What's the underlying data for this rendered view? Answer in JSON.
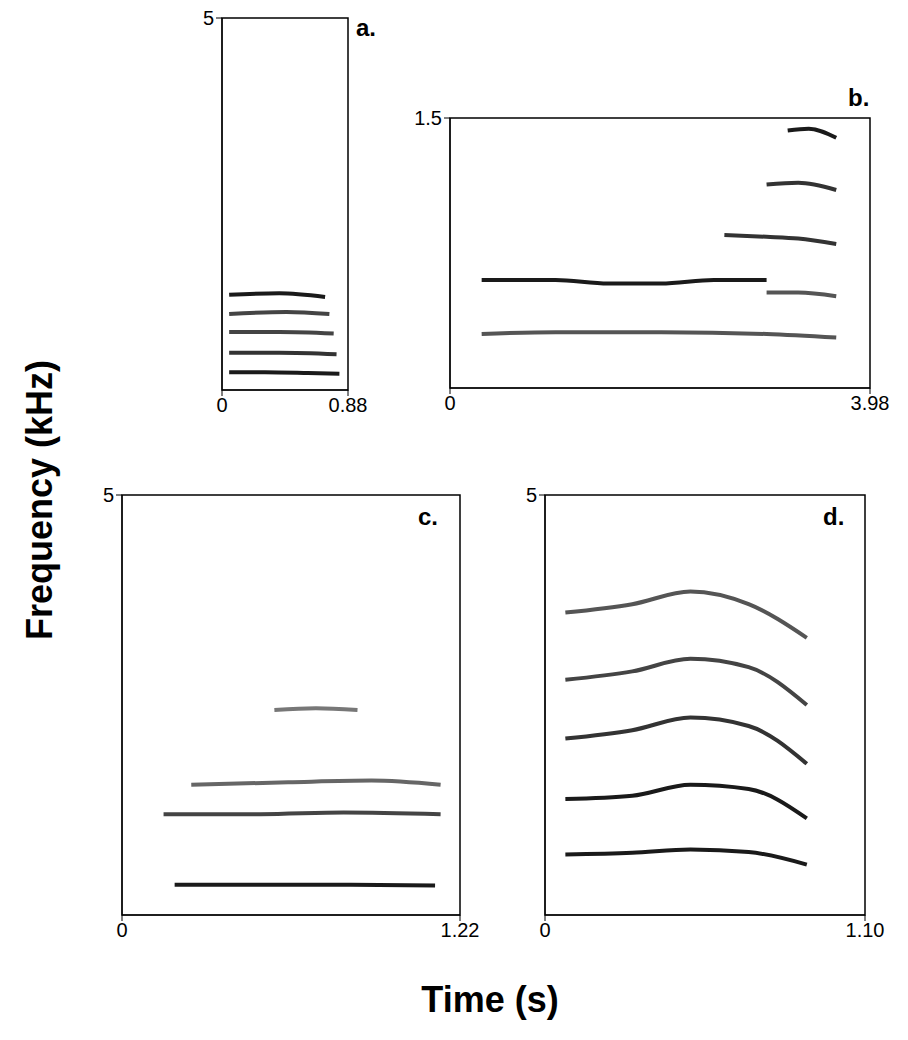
{
  "xlabel": "Time (s)",
  "ylabel": "Frequency (kHz)",
  "chart_data": [
    {
      "type": "line",
      "title": "a.",
      "xlim": [
        0,
        0.88
      ],
      "xticks": [
        0,
        0.88
      ],
      "ylim": [
        0,
        5
      ],
      "yticks": [
        5
      ],
      "grid": false,
      "series": [
        {
          "color": "#1a1a1a",
          "x": [
            0.05,
            0.3,
            0.6,
            0.82
          ],
          "values": [
            0.24,
            0.24,
            0.23,
            0.22
          ]
        },
        {
          "color": "#333333",
          "x": [
            0.05,
            0.4,
            0.8
          ],
          "values": [
            0.5,
            0.5,
            0.48
          ]
        },
        {
          "color": "#444444",
          "x": [
            0.05,
            0.4,
            0.78
          ],
          "values": [
            0.78,
            0.78,
            0.76
          ]
        },
        {
          "color": "#444444",
          "x": [
            0.05,
            0.45,
            0.75
          ],
          "values": [
            1.02,
            1.05,
            1.02
          ]
        },
        {
          "color": "#1a1a1a",
          "x": [
            0.05,
            0.4,
            0.72
          ],
          "values": [
            1.28,
            1.3,
            1.25
          ]
        }
      ]
    },
    {
      "type": "line",
      "title": "b.",
      "xlim": [
        0,
        3.98
      ],
      "xticks": [
        0,
        3.98
      ],
      "ylim": [
        0,
        1.5
      ],
      "yticks": [
        1.5
      ],
      "grid": false,
      "series": [
        {
          "color": "#1a1a1a",
          "x": [
            0.3,
            1,
            1.5,
            2,
            2.5,
            3.0
          ],
          "values": [
            0.6,
            0.6,
            0.58,
            0.58,
            0.6,
            0.6
          ]
        },
        {
          "color": "#555555",
          "x": [
            0.3,
            1,
            2,
            3,
            3.66
          ],
          "values": [
            0.3,
            0.31,
            0.31,
            0.3,
            0.28
          ]
        },
        {
          "color": "#555555",
          "x": [
            3.0,
            3.3,
            3.66
          ],
          "values": [
            0.53,
            0.53,
            0.51
          ]
        },
        {
          "color": "#333333",
          "x": [
            2.6,
            3.0,
            3.3,
            3.66
          ],
          "values": [
            0.85,
            0.84,
            0.83,
            0.8
          ]
        },
        {
          "color": "#333333",
          "x": [
            3.0,
            3.3,
            3.66
          ],
          "values": [
            1.13,
            1.14,
            1.1
          ]
        },
        {
          "color": "#1a1a1a",
          "x": [
            3.2,
            3.4,
            3.66
          ],
          "values": [
            1.43,
            1.44,
            1.39
          ]
        }
      ]
    },
    {
      "type": "line",
      "title": "c.",
      "xlim": [
        0,
        1.22
      ],
      "xticks": [
        0,
        1.22
      ],
      "ylim": [
        0,
        5
      ],
      "yticks": [
        5
      ],
      "grid": false,
      "series": [
        {
          "color": "#1a1a1a",
          "x": [
            0.19,
            0.5,
            0.8,
            1.13
          ],
          "values": [
            0.36,
            0.36,
            0.36,
            0.35
          ]
        },
        {
          "color": "#444444",
          "x": [
            0.15,
            0.5,
            0.8,
            1.15
          ],
          "values": [
            1.2,
            1.2,
            1.22,
            1.2
          ]
        },
        {
          "color": "#666666",
          "x": [
            0.25,
            0.6,
            0.9,
            1.15
          ],
          "values": [
            1.55,
            1.58,
            1.6,
            1.55
          ]
        },
        {
          "color": "#777777",
          "x": [
            0.55,
            0.7,
            0.85
          ],
          "values": [
            2.44,
            2.46,
            2.44
          ]
        }
      ]
    },
    {
      "type": "line",
      "title": "d.",
      "xlim": [
        0,
        1.1
      ],
      "xticks": [
        0,
        {
          "value": 1.1,
          "label": "1.10"
        }
      ],
      "ylim": [
        0,
        5
      ],
      "yticks": [
        5
      ],
      "grid": false,
      "series": [
        {
          "color": "#1a1a1a",
          "x": [
            0.07,
            0.3,
            0.5,
            0.7,
            0.9
          ],
          "values": [
            0.72,
            0.74,
            0.78,
            0.75,
            0.6
          ]
        },
        {
          "color": "#1a1a1a",
          "x": [
            0.07,
            0.3,
            0.5,
            0.7,
            0.9
          ],
          "values": [
            1.38,
            1.42,
            1.55,
            1.5,
            1.15
          ]
        },
        {
          "color": "#333333",
          "x": [
            0.07,
            0.3,
            0.5,
            0.7,
            0.9
          ],
          "values": [
            2.1,
            2.2,
            2.35,
            2.25,
            1.8
          ]
        },
        {
          "color": "#444444",
          "x": [
            0.07,
            0.3,
            0.5,
            0.7,
            0.9
          ],
          "values": [
            2.8,
            2.9,
            3.05,
            2.95,
            2.5
          ]
        },
        {
          "color": "#555555",
          "x": [
            0.07,
            0.3,
            0.5,
            0.7,
            0.9
          ],
          "values": [
            3.6,
            3.7,
            3.85,
            3.7,
            3.3
          ]
        }
      ]
    }
  ]
}
